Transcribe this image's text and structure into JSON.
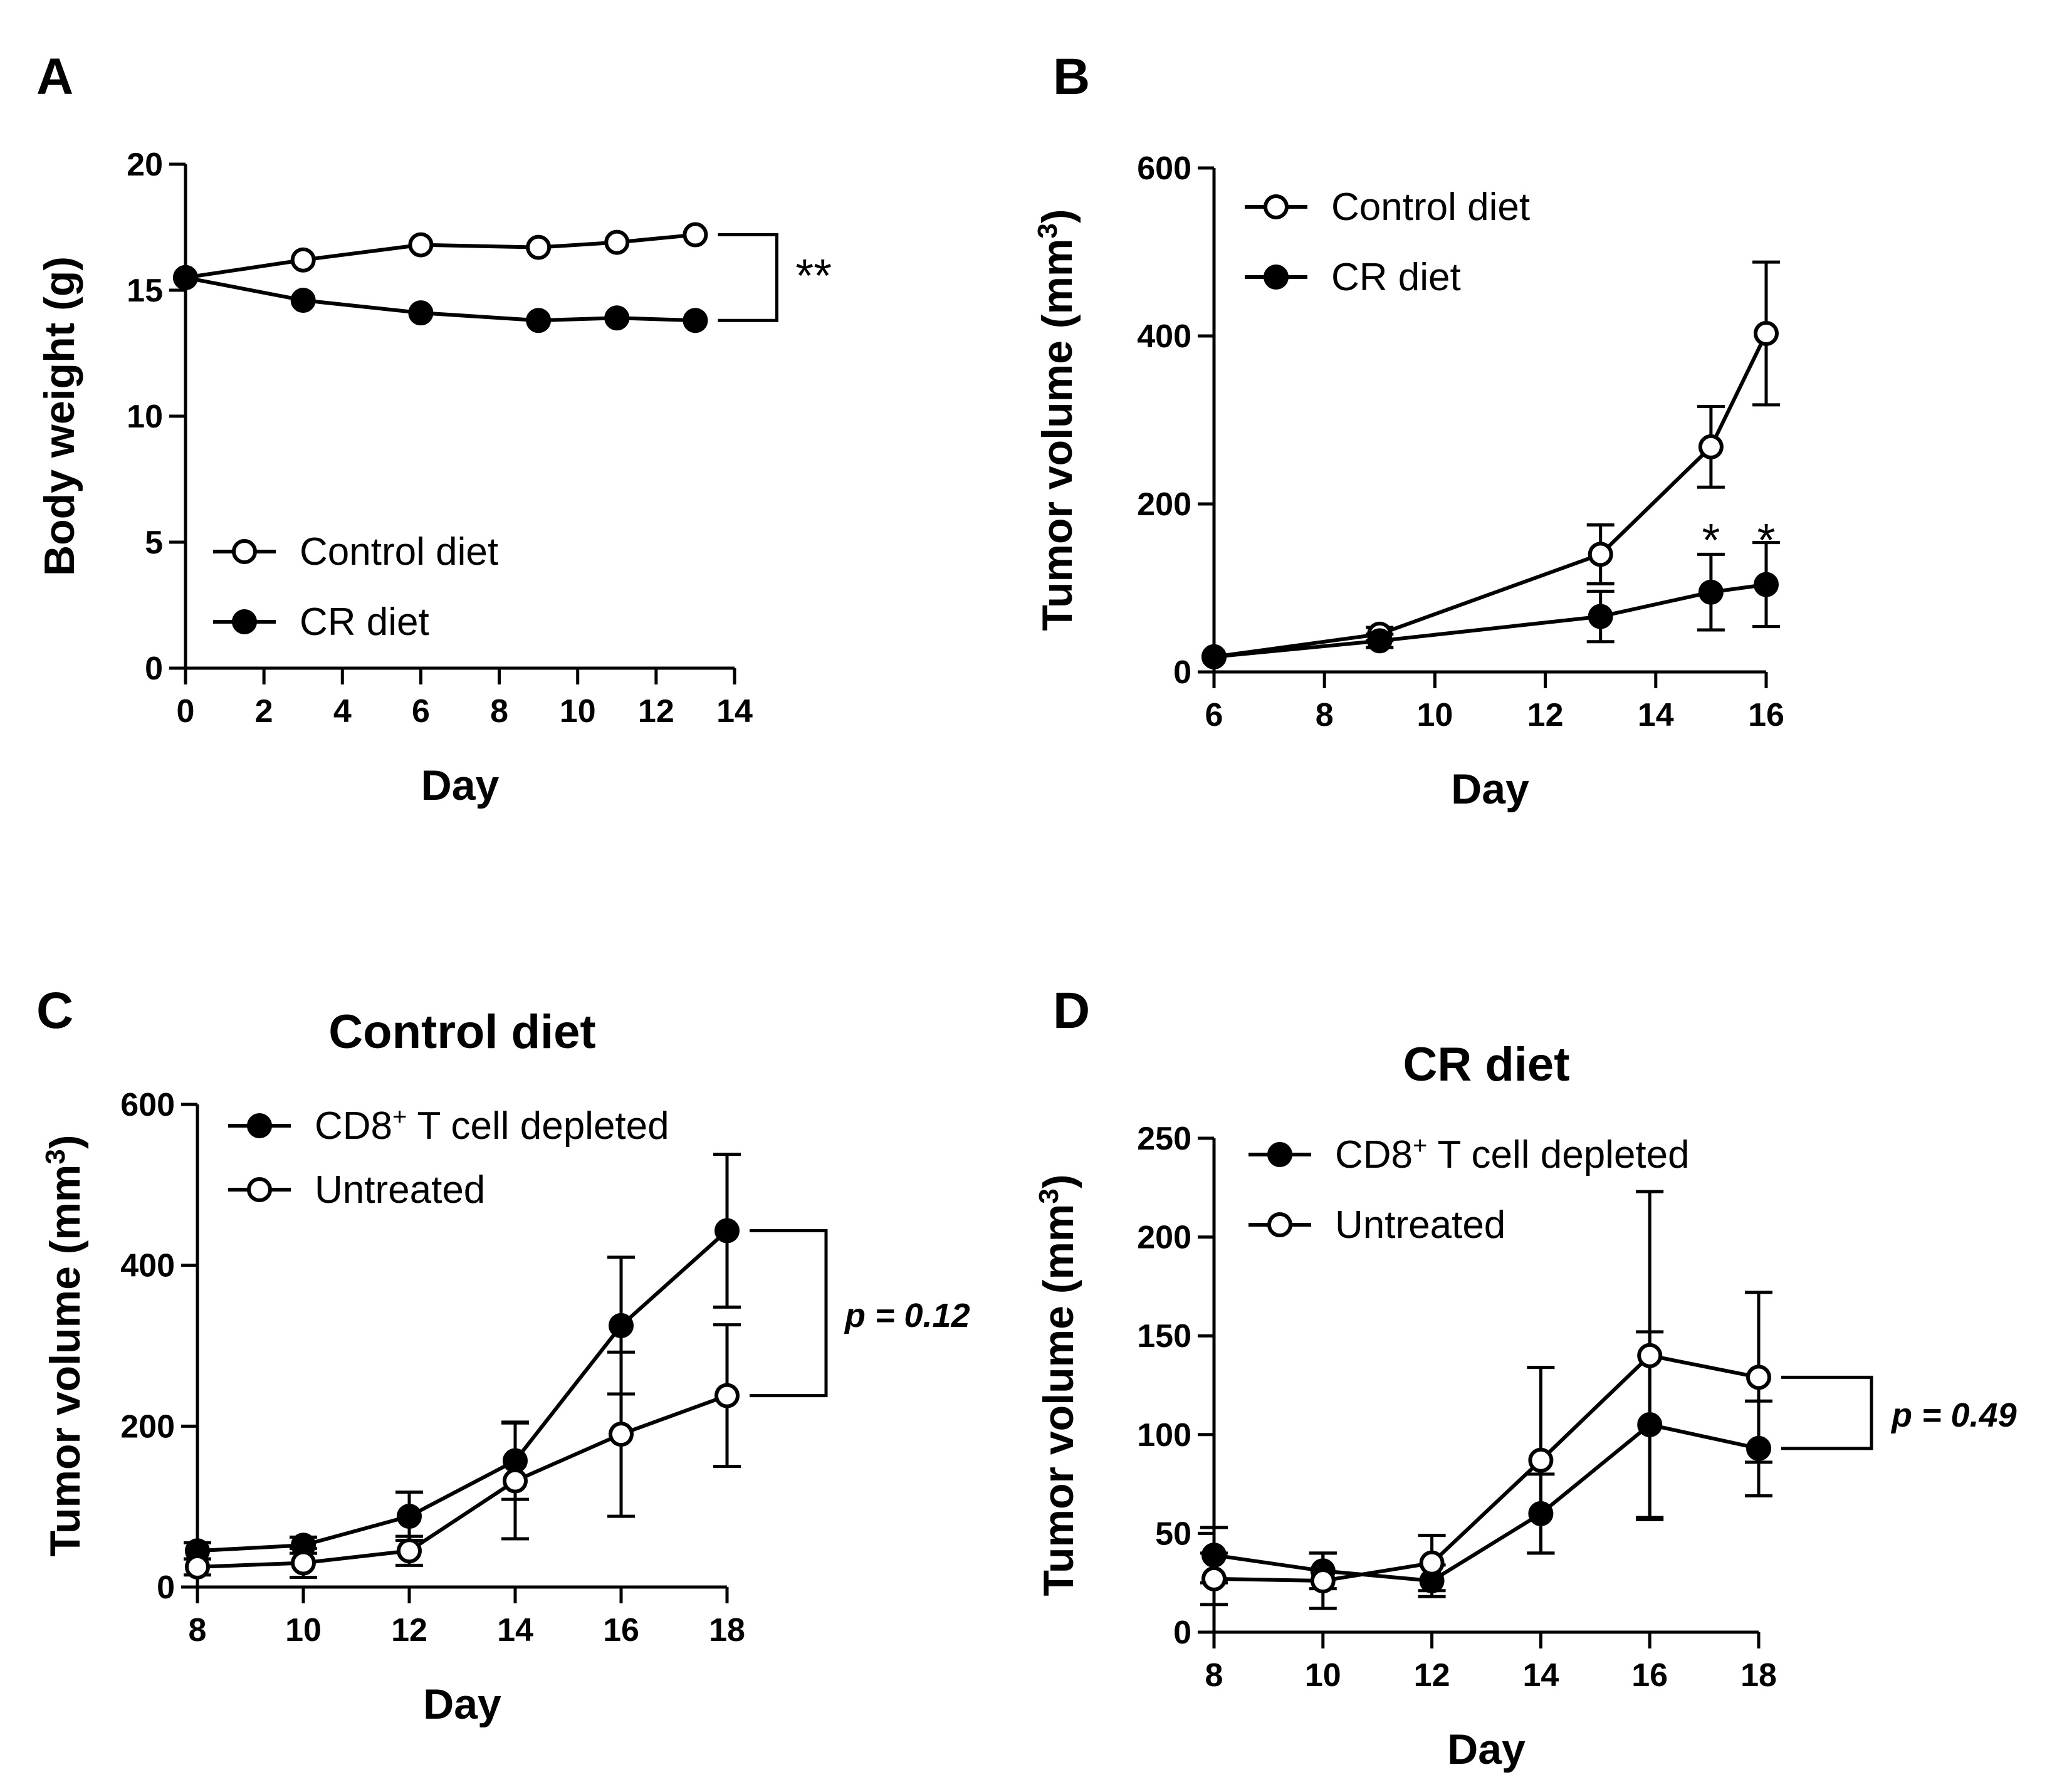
{
  "chart_data": [
    {
      "id": "A",
      "panel_label": "A",
      "title": "",
      "type": "line",
      "xlabel": "Day",
      "ylabel": "Body weight (g)",
      "xlim": [
        0,
        14
      ],
      "ylim": [
        0,
        20
      ],
      "xticks": [
        0,
        2,
        4,
        6,
        8,
        10,
        12,
        14
      ],
      "yticks": [
        0,
        5,
        10,
        15,
        20
      ],
      "legend_position": "bottom-left",
      "series": [
        {
          "name": "Control diet",
          "marker": "open",
          "x": [
            0,
            3,
            6,
            9,
            11,
            13
          ],
          "y": [
            15.5,
            16.2,
            16.8,
            16.7,
            16.9,
            17.2
          ]
        },
        {
          "name": "CR diet",
          "marker": "filled",
          "x": [
            0,
            3,
            6,
            9,
            11,
            13
          ],
          "y": [
            15.5,
            14.6,
            14.1,
            13.8,
            13.9,
            13.8
          ]
        }
      ],
      "annotations": [
        {
          "type": "bracket",
          "text": "**",
          "x": 13,
          "y_top": 17.2,
          "y_bottom": 13.8,
          "text_style": "star"
        }
      ]
    },
    {
      "id": "B",
      "panel_label": "B",
      "title": "",
      "type": "line",
      "xlabel": "Day",
      "ylabel": "Tumor volume (mm",
      "ylabel_sup": "3",
      "ylabel_end": ")",
      "xlim": [
        6,
        16
      ],
      "ylim": [
        0,
        600
      ],
      "xticks": [
        6,
        8,
        10,
        12,
        14,
        16
      ],
      "yticks": [
        0,
        200,
        400,
        600
      ],
      "legend_position": "top-left",
      "series": [
        {
          "name": "Control diet",
          "marker": "open",
          "x": [
            6,
            9,
            13,
            15,
            16
          ],
          "y": [
            18,
            45,
            140,
            268,
            403
          ],
          "err": [
            0,
            8,
            35,
            48,
            85
          ]
        },
        {
          "name": "CR diet",
          "marker": "filled",
          "x": [
            6,
            9,
            13,
            15,
            16
          ],
          "y": [
            18,
            37,
            66,
            95,
            104
          ],
          "err": [
            0,
            8,
            30,
            45,
            50
          ]
        }
      ],
      "annotations": [
        {
          "type": "text",
          "text": "*",
          "x": 15,
          "y": 165
        },
        {
          "type": "text",
          "text": "*",
          "x": 16,
          "y": 165
        }
      ]
    },
    {
      "id": "C",
      "panel_label": "C",
      "title": "Control diet",
      "type": "line",
      "xlabel": "Day",
      "ylabel": "Tumor volume (mm",
      "ylabel_sup": "3",
      "ylabel_end": ")",
      "xlim": [
        8,
        18
      ],
      "ylim": [
        0,
        600
      ],
      "xticks": [
        8,
        10,
        12,
        14,
        16,
        18
      ],
      "yticks": [
        0,
        200,
        400,
        600
      ],
      "legend_position": "top-left",
      "series": [
        {
          "name": "CD8",
          "name_sup": "+",
          "name_end": " T cell depleted",
          "marker": "filled",
          "x": [
            8,
            10,
            12,
            14,
            16,
            18
          ],
          "y": [
            45,
            52,
            88,
            157,
            325,
            443
          ],
          "err": [
            10,
            10,
            30,
            48,
            85,
            95
          ]
        },
        {
          "name": "Untreated",
          "marker": "open",
          "x": [
            8,
            10,
            12,
            14,
            16,
            18
          ],
          "y": [
            25,
            30,
            45,
            132,
            190,
            238
          ],
          "err": [
            10,
            18,
            18,
            72,
            102,
            88
          ]
        }
      ],
      "annotations": [
        {
          "type": "bracket",
          "text": "p = 0.12",
          "x": 18,
          "y_top": 443,
          "y_bottom": 238,
          "text_style": "pvalue"
        }
      ]
    },
    {
      "id": "D",
      "panel_label": "D",
      "title": "CR diet",
      "type": "line",
      "xlabel": "Day",
      "ylabel": "Tumor volume (mm",
      "ylabel_sup": "3",
      "ylabel_end": ")",
      "xlim": [
        8,
        18
      ],
      "ylim": [
        0,
        250
      ],
      "xticks": [
        8,
        10,
        12,
        14,
        16,
        18
      ],
      "yticks": [
        0,
        50,
        100,
        150,
        200,
        250
      ],
      "legend_position": "top-left",
      "series": [
        {
          "name": "CD8",
          "name_sup": "+",
          "name_end": " T cell depleted",
          "marker": "filled",
          "x": [
            8,
            10,
            12,
            14,
            16,
            18
          ],
          "y": [
            39,
            31,
            26,
            60,
            105,
            93
          ],
          "err": [
            14,
            9,
            8,
            20,
            47,
            24
          ]
        },
        {
          "name": "Untreated",
          "marker": "open",
          "x": [
            8,
            10,
            12,
            14,
            16,
            18
          ],
          "y": [
            27,
            26,
            35,
            87,
            140,
            129
          ],
          "err": [
            13,
            14,
            14,
            47,
            83,
            43
          ]
        }
      ],
      "annotations": [
        {
          "type": "bracket",
          "text": "p = 0.49",
          "x": 18,
          "y_top": 129,
          "y_bottom": 93,
          "text_style": "pvalue"
        }
      ]
    }
  ]
}
